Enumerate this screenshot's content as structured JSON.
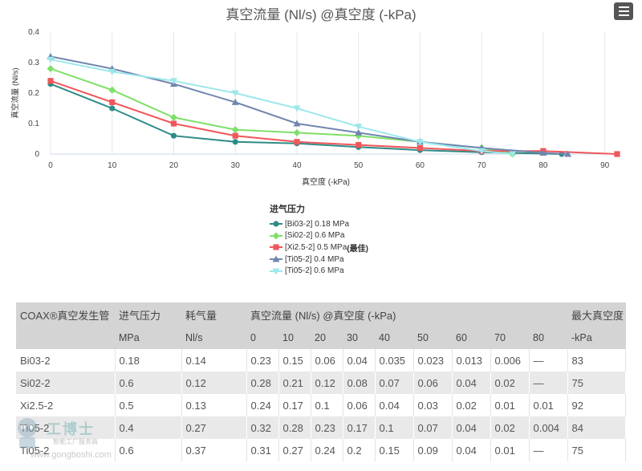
{
  "chart_data": {
    "type": "line",
    "title": "真空流量 (Nl/s) @真空度 (-kPa)",
    "xlabel": "真空度 (-kPa)",
    "ylabel": "真空流量 (Nl/s)",
    "xlim": [
      0,
      92
    ],
    "ylim": [
      0,
      0.4
    ],
    "xticks": [
      0,
      10,
      20,
      30,
      40,
      50,
      60,
      70,
      80,
      90
    ],
    "yticks": [
      0,
      0.1,
      0.2,
      0.3,
      0.4
    ],
    "grid": "vertical",
    "legend_title": "进气压力",
    "legend_position": "bottom-center",
    "series": [
      {
        "name": "[Bi03-2] 0.18 MPa",
        "color": "#2e8b86",
        "marker": "circle",
        "x": [
          0,
          10,
          20,
          30,
          40,
          50,
          60,
          70,
          83
        ],
        "y": [
          0.23,
          0.15,
          0.06,
          0.04,
          0.035,
          0.023,
          0.013,
          0.006,
          0
        ]
      },
      {
        "name": "[Si02-2] 0.6 MPa",
        "color": "#7ee068",
        "marker": "diamond",
        "x": [
          0,
          10,
          20,
          30,
          40,
          50,
          60,
          70,
          75
        ],
        "y": [
          0.28,
          0.21,
          0.12,
          0.08,
          0.07,
          0.06,
          0.04,
          0.02,
          0
        ]
      },
      {
        "name": "[Xi2.5-2] 0.5 MPa",
        "suffix": "(最佳)",
        "color": "#f0575a",
        "marker": "square",
        "x": [
          0,
          10,
          20,
          30,
          40,
          50,
          60,
          70,
          80,
          92
        ],
        "y": [
          0.24,
          0.17,
          0.1,
          0.06,
          0.04,
          0.03,
          0.02,
          0.01,
          0.01,
          0
        ]
      },
      {
        "name": "[Ti05-2] 0.4 MPa",
        "color": "#7086b0",
        "marker": "triangle",
        "x": [
          0,
          10,
          20,
          30,
          40,
          50,
          60,
          70,
          80,
          84
        ],
        "y": [
          0.32,
          0.28,
          0.23,
          0.17,
          0.1,
          0.07,
          0.04,
          0.02,
          0.004,
          0
        ]
      },
      {
        "name": "[Ti05-2] 0.6 MPa",
        "color": "#9ce8ec",
        "marker": "triangle-down",
        "x": [
          0,
          10,
          20,
          30,
          40,
          50,
          60,
          70,
          75
        ],
        "y": [
          0.31,
          0.27,
          0.24,
          0.2,
          0.15,
          0.09,
          0.04,
          0.01,
          0
        ]
      }
    ]
  },
  "menu_icon": "hamburger-icon",
  "table": {
    "headers": [
      "COAX®真空发生管",
      "进气压力",
      "耗气量",
      "真空流量 (Nl/s) @真空度 (-kPa)",
      "最大真空度"
    ],
    "subheaders": [
      "",
      "MPa",
      "Nl/s",
      "0",
      "10",
      "20",
      "30",
      "40",
      "50",
      "60",
      "70",
      "80",
      "-kPa"
    ],
    "rows": [
      [
        "Bi03-2",
        "0.18",
        "0.14",
        "0.23",
        "0.15",
        "0.06",
        "0.04",
        "0.035",
        "0.023",
        "0.013",
        "0.006",
        "—",
        "83"
      ],
      [
        "Si02-2",
        "0.6",
        "0.12",
        "0.28",
        "0.21",
        "0.12",
        "0.08",
        "0.07",
        "0.06",
        "0.04",
        "0.02",
        "—",
        "75"
      ],
      [
        "Xi2.5-2",
        "0.5",
        "0.13",
        "0.24",
        "0.17",
        "0.1",
        "0.06",
        "0.04",
        "0.03",
        "0.02",
        "0.01",
        "0.01",
        "92"
      ],
      [
        "Ti05-2",
        "0.4",
        "0.27",
        "0.32",
        "0.28",
        "0.23",
        "0.17",
        "0.1",
        "0.07",
        "0.04",
        "0.02",
        "0.004",
        "84"
      ],
      [
        "Ti05-2",
        "0.6",
        "0.37",
        "0.31",
        "0.27",
        "0.24",
        "0.2",
        "0.15",
        "0.09",
        "0.04",
        "0.01",
        "—",
        "75"
      ]
    ]
  },
  "watermark": {
    "logo_text": "工博士",
    "tagline": "智能工厂服务商",
    "url": "www.gongboshi.com"
  }
}
